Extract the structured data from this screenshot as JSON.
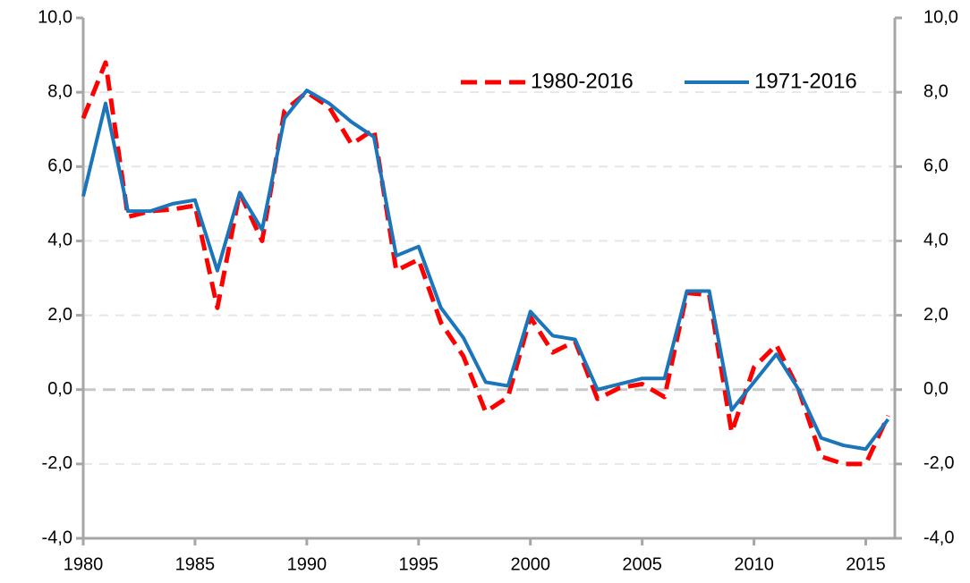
{
  "chart_data": {
    "type": "line",
    "x": [
      1980,
      1981,
      1982,
      1983,
      1984,
      1985,
      1986,
      1987,
      1988,
      1989,
      1990,
      1991,
      1992,
      1993,
      1994,
      1995,
      1996,
      1997,
      1998,
      1999,
      2000,
      2001,
      2002,
      2003,
      2004,
      2005,
      2006,
      2007,
      2008,
      2009,
      2010,
      2011,
      2012,
      2013,
      2014,
      2015,
      2016
    ],
    "series": [
      {
        "name": "1980-2016",
        "color": "#ff0000",
        "dashed": true,
        "values": [
          7.3,
          8.8,
          4.65,
          4.8,
          4.85,
          4.95,
          2.2,
          5.3,
          4.0,
          7.5,
          8.0,
          7.6,
          6.6,
          7.0,
          3.2,
          3.5,
          1.8,
          0.9,
          -0.6,
          -0.2,
          1.95,
          1.0,
          1.3,
          -0.25,
          0.05,
          0.15,
          -0.2,
          2.6,
          2.55,
          -1.15,
          0.6,
          1.2,
          0.0,
          -1.8,
          -2.0,
          -2.0,
          -0.7
        ]
      },
      {
        "name": "1971-2016",
        "color": "#1b75bb",
        "dashed": false,
        "values": [
          5.2,
          7.7,
          4.8,
          4.8,
          5.0,
          5.1,
          3.2,
          5.3,
          4.3,
          7.3,
          8.05,
          7.7,
          7.2,
          6.8,
          3.6,
          3.85,
          2.2,
          1.4,
          0.2,
          0.1,
          2.1,
          1.45,
          1.35,
          0.0,
          0.15,
          0.3,
          0.3,
          2.65,
          2.65,
          -0.55,
          0.2,
          0.95,
          0.0,
          -1.3,
          -1.5,
          -1.6,
          -0.8
        ]
      }
    ],
    "xlim": [
      1980,
      2016.3
    ],
    "xticks": [
      1980,
      1985,
      1990,
      1995,
      2000,
      2005,
      2010,
      2015
    ],
    "ylim": [
      -4,
      10
    ],
    "yticks": [
      {
        "value": -4,
        "label": "-4,0"
      },
      {
        "value": -2,
        "label": "-2,0"
      },
      {
        "value": 0,
        "label": "0,0"
      },
      {
        "value": 2,
        "label": "2,0"
      },
      {
        "value": 4,
        "label": "4,0"
      },
      {
        "value": 6,
        "label": "6,0"
      },
      {
        "value": 8,
        "label": "8,0"
      },
      {
        "value": 10,
        "label": "10,0"
      }
    ],
    "y2lim": [
      -4,
      10
    ],
    "y2ticks": [
      {
        "value": -4,
        "label": "-4,0"
      },
      {
        "value": -2,
        "label": "-2,0"
      },
      {
        "value": 0,
        "label": "0,0"
      },
      {
        "value": 2,
        "label": "2,0"
      },
      {
        "value": 4,
        "label": "4,0"
      },
      {
        "value": 6,
        "label": "6,0"
      },
      {
        "value": 8,
        "label": "8,0"
      },
      {
        "value": 10,
        "label": "10,0"
      }
    ],
    "grid": true,
    "legend": "top-right"
  }
}
